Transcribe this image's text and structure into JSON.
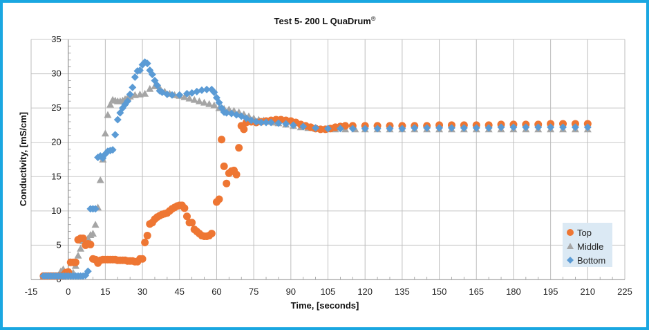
{
  "chart_data": {
    "type": "scatter",
    "title": "Test 5- 200 L QuaDrum",
    "title_mark": "®",
    "xlabel": "Time, [seconds]",
    "ylabel": "Conductivity,  [mS/cm]",
    "xlim": [
      -15,
      225
    ],
    "ylim": [
      0,
      35
    ],
    "xticks": [
      -15,
      0,
      15,
      30,
      45,
      60,
      75,
      90,
      105,
      120,
      135,
      150,
      165,
      180,
      195,
      210,
      225
    ],
    "yticks": [
      0,
      5,
      10,
      15,
      20,
      25,
      30,
      35
    ],
    "grid": true,
    "legend": "right",
    "series": [
      {
        "name": "Top",
        "color": "#ee7633",
        "marker": "circle",
        "points": [
          [
            -10,
            0.5
          ],
          [
            -9,
            0.5
          ],
          [
            -8,
            0.5
          ],
          [
            -7,
            0.5
          ],
          [
            -6,
            0.5
          ],
          [
            -5,
            0.5
          ],
          [
            -4,
            0.5
          ],
          [
            -3,
            0.5
          ],
          [
            -2,
            0.6
          ],
          [
            -1,
            1.0
          ],
          [
            0,
            1.1
          ],
          [
            1,
            2.5
          ],
          [
            2,
            2.5
          ],
          [
            3,
            2.5
          ],
          [
            4,
            5.8
          ],
          [
            5,
            6.0
          ],
          [
            6,
            6.0
          ],
          [
            7,
            5.0
          ],
          [
            8,
            5.2
          ],
          [
            9,
            5.1
          ],
          [
            10,
            3.0
          ],
          [
            11,
            2.9
          ],
          [
            12,
            2.4
          ],
          [
            13,
            2.8
          ],
          [
            14,
            2.9
          ],
          [
            15,
            2.9
          ],
          [
            16,
            2.9
          ],
          [
            17,
            2.9
          ],
          [
            18,
            2.9
          ],
          [
            19,
            2.9
          ],
          [
            20,
            2.8
          ],
          [
            21,
            2.8
          ],
          [
            22,
            2.8
          ],
          [
            23,
            2.8
          ],
          [
            24,
            2.7
          ],
          [
            25,
            2.7
          ],
          [
            26,
            2.7
          ],
          [
            27,
            2.6
          ],
          [
            28,
            2.6
          ],
          [
            29,
            3.0
          ],
          [
            30,
            3.0
          ],
          [
            31,
            5.4
          ],
          [
            32,
            6.4
          ],
          [
            33,
            8.1
          ],
          [
            34,
            8.3
          ],
          [
            35,
            8.8
          ],
          [
            36,
            9.1
          ],
          [
            37,
            9.3
          ],
          [
            38,
            9.5
          ],
          [
            39,
            9.6
          ],
          [
            40,
            9.7
          ],
          [
            41,
            10.0
          ],
          [
            42,
            10.3
          ],
          [
            43,
            10.5
          ],
          [
            44,
            10.7
          ],
          [
            45,
            10.8
          ],
          [
            46,
            10.8
          ],
          [
            47,
            10.4
          ],
          [
            48,
            9.2
          ],
          [
            49,
            8.3
          ],
          [
            50,
            8.3
          ],
          [
            51,
            7.3
          ],
          [
            52,
            7.0
          ],
          [
            53,
            6.7
          ],
          [
            54,
            6.4
          ],
          [
            55,
            6.3
          ],
          [
            56,
            6.3
          ],
          [
            57,
            6.4
          ],
          [
            58,
            6.7
          ],
          [
            60,
            11.3
          ],
          [
            61,
            11.7
          ],
          [
            62,
            20.4
          ],
          [
            63,
            16.5
          ],
          [
            64,
            14.0
          ],
          [
            65,
            15.5
          ],
          [
            66,
            15.8
          ],
          [
            67,
            15.9
          ],
          [
            68,
            15.3
          ],
          [
            69,
            19.2
          ],
          [
            70,
            22.4
          ],
          [
            71,
            21.9
          ],
          [
            72,
            22.9
          ],
          [
            74,
            23.0
          ],
          [
            76,
            22.9
          ],
          [
            78,
            23.0
          ],
          [
            80,
            23.1
          ],
          [
            82,
            23.2
          ],
          [
            84,
            23.3
          ],
          [
            86,
            23.3
          ],
          [
            88,
            23.2
          ],
          [
            90,
            23.1
          ],
          [
            92,
            22.9
          ],
          [
            94,
            22.6
          ],
          [
            96,
            22.4
          ],
          [
            98,
            22.2
          ],
          [
            100,
            22.0
          ],
          [
            102,
            21.9
          ],
          [
            104,
            21.9
          ],
          [
            106,
            22.0
          ],
          [
            108,
            22.2
          ],
          [
            110,
            22.3
          ],
          [
            112,
            22.4
          ],
          [
            115,
            22.4
          ],
          [
            120,
            22.4
          ],
          [
            125,
            22.4
          ],
          [
            130,
            22.4
          ],
          [
            135,
            22.4
          ],
          [
            140,
            22.4
          ],
          [
            145,
            22.4
          ],
          [
            150,
            22.5
          ],
          [
            155,
            22.5
          ],
          [
            160,
            22.5
          ],
          [
            165,
            22.5
          ],
          [
            170,
            22.5
          ],
          [
            175,
            22.6
          ],
          [
            180,
            22.6
          ],
          [
            185,
            22.6
          ],
          [
            190,
            22.6
          ],
          [
            195,
            22.7
          ],
          [
            200,
            22.7
          ],
          [
            205,
            22.7
          ],
          [
            210,
            22.7
          ]
        ]
      },
      {
        "name": "Middle",
        "color": "#a5a5a5",
        "marker": "triangle",
        "points": [
          [
            -10,
            0.5
          ],
          [
            -9,
            0.5
          ],
          [
            -8,
            0.5
          ],
          [
            -7,
            0.5
          ],
          [
            -6,
            0.5
          ],
          [
            -5,
            0.5
          ],
          [
            -4,
            0.6
          ],
          [
            -3,
            1.2
          ],
          [
            -2,
            1.5
          ],
          [
            -1,
            0.8
          ],
          [
            0,
            1.0
          ],
          [
            1,
            1.0
          ],
          [
            2,
            1.0
          ],
          [
            3,
            2.0
          ],
          [
            4,
            3.5
          ],
          [
            5,
            4.5
          ],
          [
            6,
            5.6
          ],
          [
            7,
            5.9
          ],
          [
            8,
            6.0
          ],
          [
            9,
            6.5
          ],
          [
            10,
            6.7
          ],
          [
            11,
            8.0
          ],
          [
            12,
            10.5
          ],
          [
            13,
            14.5
          ],
          [
            14,
            17.5
          ],
          [
            15,
            21.3
          ],
          [
            16,
            24.0
          ],
          [
            17,
            25.5
          ],
          [
            18,
            26.2
          ],
          [
            19,
            26.1
          ],
          [
            20,
            26.0
          ],
          [
            21,
            26.0
          ],
          [
            22,
            26.1
          ],
          [
            23,
            26.3
          ],
          [
            24,
            26.5
          ],
          [
            25,
            26.7
          ],
          [
            27,
            26.9
          ],
          [
            29,
            27.0
          ],
          [
            31,
            27.1
          ],
          [
            33,
            27.8
          ],
          [
            35,
            28.2
          ],
          [
            37,
            27.9
          ],
          [
            39,
            27.4
          ],
          [
            41,
            27.1
          ],
          [
            43,
            26.9
          ],
          [
            45,
            26.8
          ],
          [
            47,
            26.6
          ],
          [
            49,
            26.4
          ],
          [
            51,
            26.2
          ],
          [
            53,
            26.0
          ],
          [
            55,
            25.8
          ],
          [
            57,
            25.6
          ],
          [
            59,
            25.4
          ],
          [
            61,
            25.0
          ],
          [
            63,
            24.9
          ],
          [
            65,
            24.8
          ],
          [
            67,
            24.6
          ],
          [
            69,
            24.4
          ],
          [
            71,
            24.1
          ],
          [
            73,
            23.8
          ],
          [
            75,
            23.5
          ],
          [
            77,
            23.3
          ],
          [
            79,
            23.2
          ],
          [
            81,
            23.0
          ],
          [
            83,
            22.9
          ],
          [
            85,
            22.8
          ],
          [
            88,
            22.6
          ],
          [
            91,
            22.4
          ],
          [
            94,
            22.2
          ],
          [
            97,
            22.1
          ],
          [
            100,
            22.0
          ],
          [
            104,
            21.9
          ],
          [
            108,
            21.9
          ],
          [
            112,
            21.9
          ],
          [
            116,
            21.9
          ],
          [
            120,
            21.9
          ],
          [
            125,
            21.9
          ],
          [
            130,
            21.9
          ],
          [
            135,
            21.9
          ],
          [
            140,
            21.9
          ],
          [
            145,
            21.9
          ],
          [
            150,
            21.9
          ],
          [
            155,
            21.9
          ],
          [
            160,
            21.9
          ],
          [
            165,
            21.9
          ],
          [
            170,
            21.9
          ],
          [
            175,
            21.9
          ],
          [
            180,
            21.9
          ],
          [
            185,
            21.9
          ],
          [
            190,
            21.9
          ],
          [
            195,
            21.9
          ],
          [
            200,
            21.9
          ],
          [
            205,
            21.9
          ],
          [
            210,
            21.9
          ]
        ]
      },
      {
        "name": "Bottom",
        "color": "#5b9bd5",
        "marker": "diamond",
        "points": [
          [
            -10,
            0.5
          ],
          [
            -9,
            0.5
          ],
          [
            -8,
            0.5
          ],
          [
            -7,
            0.5
          ],
          [
            -6,
            0.5
          ],
          [
            -5,
            0.5
          ],
          [
            -4,
            0.5
          ],
          [
            -3,
            0.5
          ],
          [
            -2,
            0.5
          ],
          [
            -1,
            0.5
          ],
          [
            0,
            0.5
          ],
          [
            1,
            0.5
          ],
          [
            2,
            0.5
          ],
          [
            3,
            0.5
          ],
          [
            4,
            0.5
          ],
          [
            5,
            0.5
          ],
          [
            6,
            0.5
          ],
          [
            7,
            0.6
          ],
          [
            8,
            1.2
          ],
          [
            9,
            10.3
          ],
          [
            10,
            10.3
          ],
          [
            11,
            10.3
          ],
          [
            12,
            17.8
          ],
          [
            13,
            18.0
          ],
          [
            14,
            17.7
          ],
          [
            15,
            18.3
          ],
          [
            16,
            18.7
          ],
          [
            17,
            18.8
          ],
          [
            18,
            18.9
          ],
          [
            19,
            21.1
          ],
          [
            20,
            23.3
          ],
          [
            21,
            24.3
          ],
          [
            22,
            25.0
          ],
          [
            23,
            25.5
          ],
          [
            24,
            26.0
          ],
          [
            25,
            27.0
          ],
          [
            26,
            28.0
          ],
          [
            27,
            29.5
          ],
          [
            28,
            30.4
          ],
          [
            29,
            30.5
          ],
          [
            30,
            31.3
          ],
          [
            31,
            31.7
          ],
          [
            32,
            31.5
          ],
          [
            33,
            30.5
          ],
          [
            34,
            29.9
          ],
          [
            35,
            29.0
          ],
          [
            36,
            28.3
          ],
          [
            37,
            27.5
          ],
          [
            38,
            27.3
          ],
          [
            40,
            27.0
          ],
          [
            42,
            26.9
          ],
          [
            45,
            26.9
          ],
          [
            48,
            27.1
          ],
          [
            50,
            27.2
          ],
          [
            52,
            27.4
          ],
          [
            54,
            27.6
          ],
          [
            56,
            27.7
          ],
          [
            58,
            27.7
          ],
          [
            59,
            27.3
          ],
          [
            60,
            26.5
          ],
          [
            61,
            25.8
          ],
          [
            62,
            25.0
          ],
          [
            63,
            24.4
          ],
          [
            64,
            24.3
          ],
          [
            66,
            24.2
          ],
          [
            68,
            24.0
          ],
          [
            70,
            23.8
          ],
          [
            72,
            23.5
          ],
          [
            74,
            23.2
          ],
          [
            76,
            23.0
          ],
          [
            78,
            22.9
          ],
          [
            80,
            22.9
          ],
          [
            82,
            22.9
          ],
          [
            85,
            22.8
          ],
          [
            88,
            22.7
          ],
          [
            91,
            22.5
          ],
          [
            95,
            22.3
          ],
          [
            100,
            22.1
          ],
          [
            105,
            22.0
          ],
          [
            110,
            22.0
          ],
          [
            115,
            22.0
          ],
          [
            120,
            22.0
          ],
          [
            125,
            22.0
          ],
          [
            130,
            22.0
          ],
          [
            135,
            22.0
          ],
          [
            140,
            22.1
          ],
          [
            145,
            22.1
          ],
          [
            150,
            22.1
          ],
          [
            155,
            22.1
          ],
          [
            160,
            22.1
          ],
          [
            165,
            22.1
          ],
          [
            170,
            22.1
          ],
          [
            175,
            22.2
          ],
          [
            180,
            22.2
          ],
          [
            185,
            22.2
          ],
          [
            190,
            22.2
          ],
          [
            195,
            22.2
          ],
          [
            200,
            22.2
          ],
          [
            205,
            22.2
          ],
          [
            210,
            22.2
          ]
        ]
      }
    ]
  }
}
